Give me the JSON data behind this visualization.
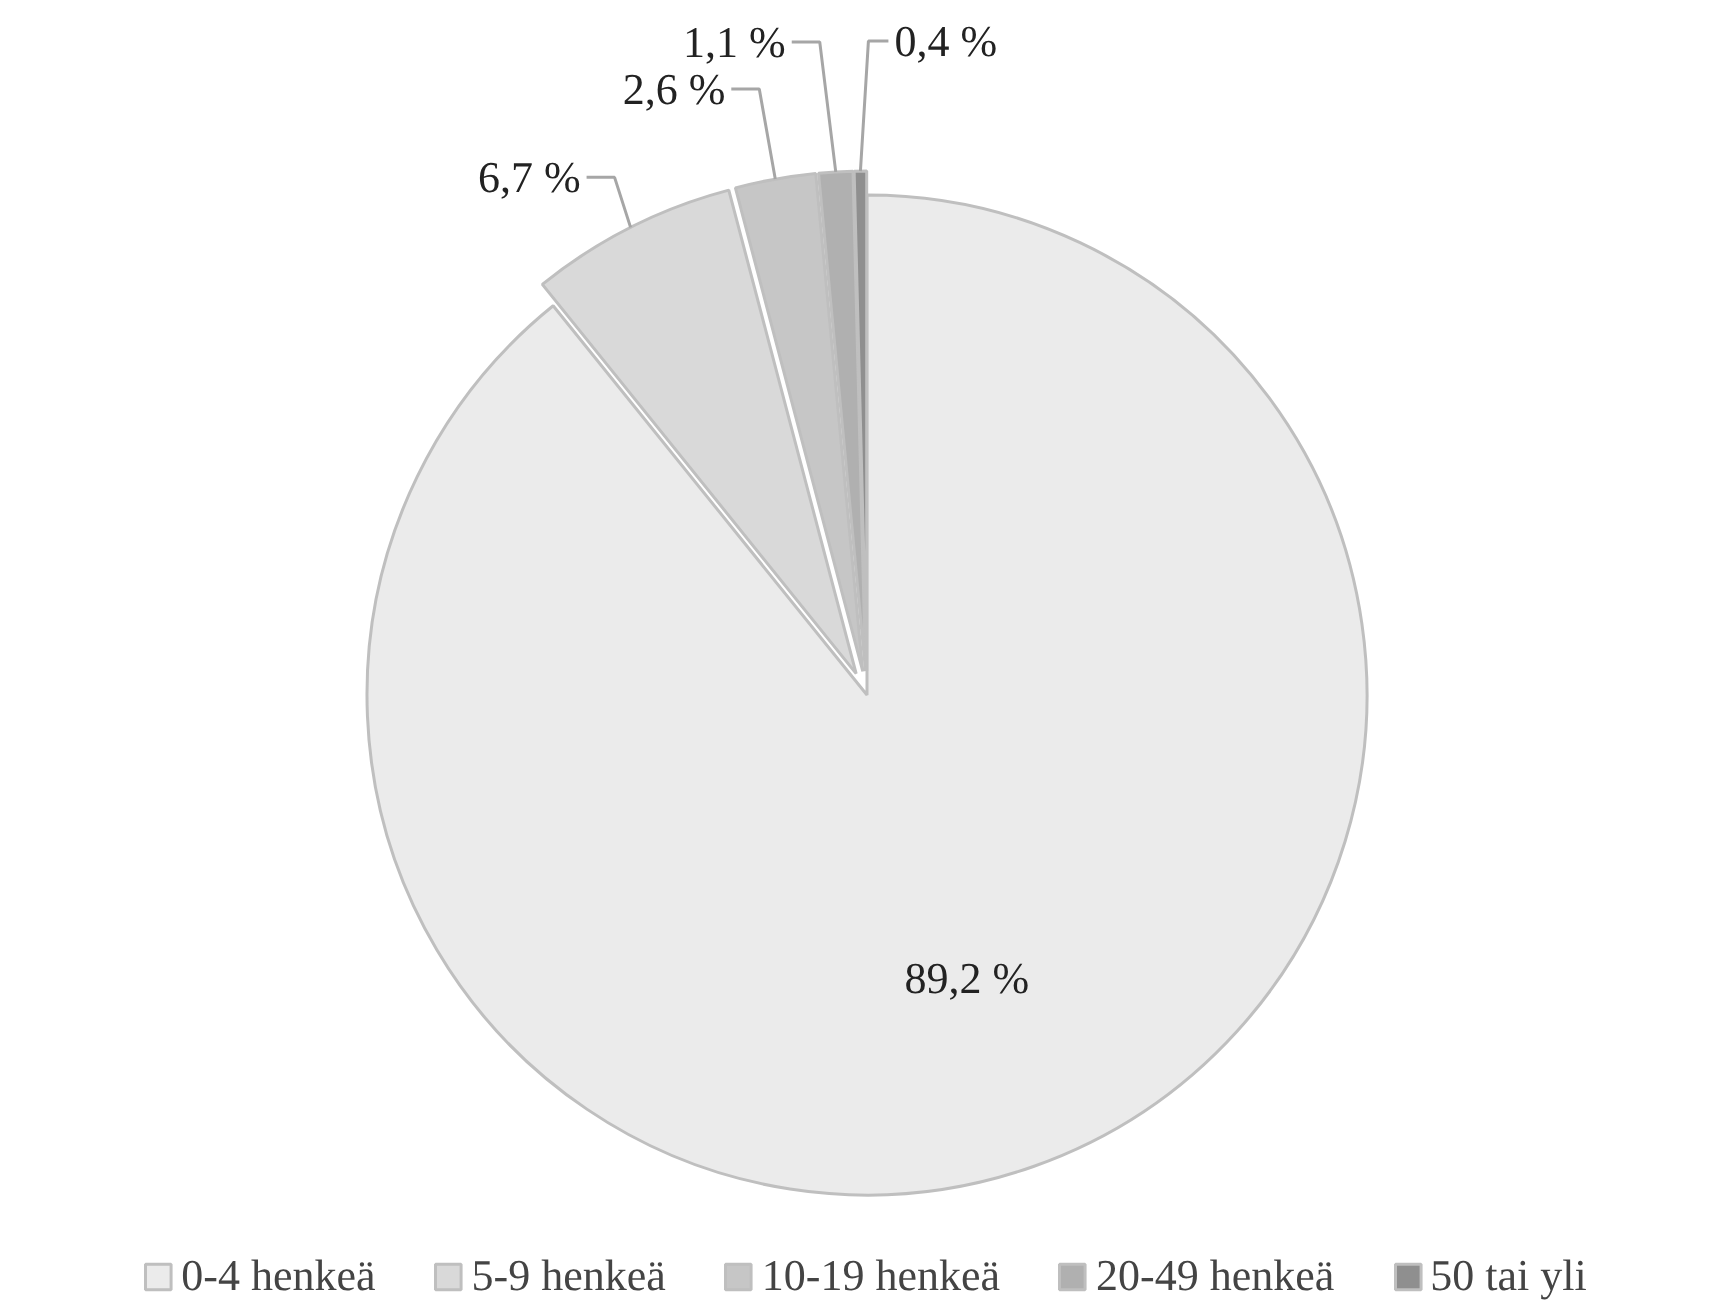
{
  "chart_data": {
    "type": "pie",
    "categories": [
      "0-4 henkeä",
      "5-9 henkeä",
      "10-19 henkeä",
      "20-49 henkeä",
      "50 tai yli"
    ],
    "values": [
      89.2,
      6.7,
      2.6,
      1.1,
      0.4
    ],
    "value_labels": [
      "89,2 %",
      "6,7 %",
      "2,6 %",
      "1,1 %",
      "0,4 %"
    ],
    "colors": [
      "#ebebeb",
      "#d9d9d9",
      "#c6c6c6",
      "#b0b0b0",
      "#8f8f8f"
    ],
    "legend": "bottom"
  }
}
